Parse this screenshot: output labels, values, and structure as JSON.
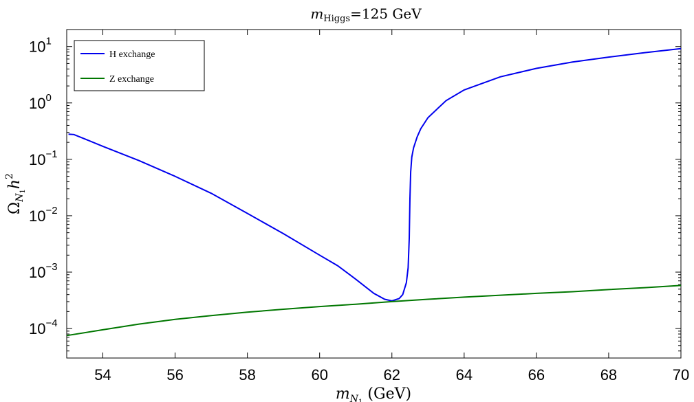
{
  "title": {
    "m": "m",
    "sub": "Higgs",
    "rest": "=125 GeV"
  },
  "xlabel": {
    "m": "m",
    "sub": "N",
    "subsub": "1",
    "rest": " (GeV)"
  },
  "ylabel": {
    "omega": "Ω",
    "sub": "N",
    "subsub": "1",
    "h": "h",
    "sup": "2"
  },
  "chart_data": {
    "type": "line",
    "title": "m_Higgs=125 GeV",
    "xlabel": "m_N1 (GeV)",
    "ylabel": "Ω_N1 h^2",
    "xlim": [
      53,
      70
    ],
    "ylim": [
      3e-05,
      20
    ],
    "yscale": "log",
    "grid": false,
    "legend_position": "top-left",
    "x_ticks": [
      54,
      56,
      58,
      60,
      62,
      64,
      66,
      68,
      70
    ],
    "y_ticks": [
      {
        "value": 0.0001,
        "base": "10",
        "exp": "−4"
      },
      {
        "value": 0.001,
        "base": "10",
        "exp": "−3"
      },
      {
        "value": 0.01,
        "base": "10",
        "exp": "−2"
      },
      {
        "value": 0.1,
        "base": "10",
        "exp": "−1"
      },
      {
        "value": 1,
        "base": "10",
        "exp": "0"
      },
      {
        "value": 10,
        "base": "10",
        "exp": "1"
      }
    ],
    "series": [
      {
        "name": "H exchange",
        "color": "#0000ee",
        "points": [
          [
            53.05,
            0.28
          ],
          [
            53.2,
            0.275
          ],
          [
            53.5,
            0.23
          ],
          [
            54.0,
            0.17
          ],
          [
            55.0,
            0.095
          ],
          [
            56.0,
            0.05
          ],
          [
            57.0,
            0.025
          ],
          [
            58.0,
            0.011
          ],
          [
            59.0,
            0.0048
          ],
          [
            60.0,
            0.002
          ],
          [
            60.5,
            0.0013
          ],
          [
            61.0,
            0.00075
          ],
          [
            61.5,
            0.00042
          ],
          [
            61.8,
            0.00033
          ],
          [
            62.0,
            0.00031
          ],
          [
            62.2,
            0.00034
          ],
          [
            62.3,
            0.0004
          ],
          [
            62.4,
            0.00065
          ],
          [
            62.45,
            0.0012
          ],
          [
            62.48,
            0.004
          ],
          [
            62.5,
            0.02
          ],
          [
            62.52,
            0.06
          ],
          [
            62.55,
            0.11
          ],
          [
            62.6,
            0.16
          ],
          [
            62.7,
            0.25
          ],
          [
            62.8,
            0.35
          ],
          [
            63.0,
            0.55
          ],
          [
            63.5,
            1.1
          ],
          [
            64.0,
            1.7
          ],
          [
            65.0,
            2.9
          ],
          [
            66.0,
            4.1
          ],
          [
            67.0,
            5.3
          ],
          [
            68.0,
            6.5
          ],
          [
            69.0,
            7.8
          ],
          [
            70.0,
            9.2
          ]
        ]
      },
      {
        "name": "Z exchange",
        "color": "#007700",
        "points": [
          [
            53.0,
            7.5e-05
          ],
          [
            54.0,
            9.5e-05
          ],
          [
            55.0,
            0.00012
          ],
          [
            56.0,
            0.000145
          ],
          [
            57.0,
            0.00017
          ],
          [
            58.0,
            0.000195
          ],
          [
            59.0,
            0.00022
          ],
          [
            60.0,
            0.000245
          ],
          [
            61.0,
            0.00027
          ],
          [
            62.0,
            0.0003
          ],
          [
            63.0,
            0.00033
          ],
          [
            64.0,
            0.00036
          ],
          [
            65.0,
            0.00039
          ],
          [
            66.0,
            0.00042
          ],
          [
            67.0,
            0.00045
          ],
          [
            68.0,
            0.00049
          ],
          [
            69.0,
            0.00053
          ],
          [
            70.0,
            0.00058
          ]
        ]
      }
    ]
  }
}
